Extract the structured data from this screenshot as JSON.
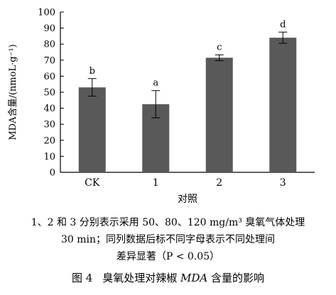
{
  "chart_data": {
    "type": "bar",
    "categories": [
      "CK",
      "1",
      "2",
      "3"
    ],
    "values": [
      53,
      42.5,
      71.5,
      84
    ],
    "errors": [
      5.5,
      8.5,
      1.8,
      3.5
    ],
    "labels": [
      "b",
      "a",
      "c",
      "d"
    ],
    "xlabel": "对照",
    "ylabel": "MDA含量/(nmoL·g⁻¹)",
    "ylim": [
      0,
      100
    ],
    "yticks": [
      0,
      10,
      20,
      30,
      40,
      50,
      60,
      70,
      80,
      90,
      100
    ],
    "bar_color": "#595959",
    "grid": false
  },
  "caption": {
    "note_line1": "1、2 和 3 分别表示采用 50、80、120 mg/m³ 臭氧气体处理",
    "note_line2": "30 min；同列数据后标不同字母表示不同处理间",
    "note_line3": "差异显著（P < 0.05）",
    "figure_number": "图 4",
    "title_pre": "臭氧处理对辣椒 ",
    "title_em": "MDA",
    "title_post": " 含量的影响"
  }
}
